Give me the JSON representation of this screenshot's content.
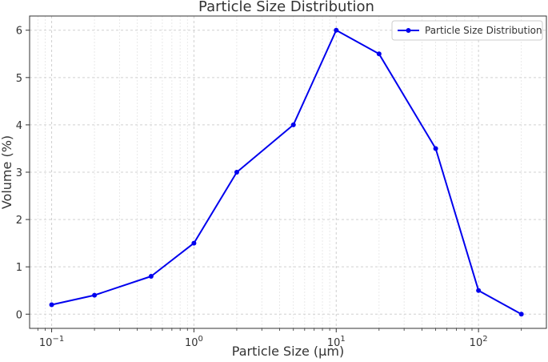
{
  "chart_data": {
    "type": "line",
    "title": "Particle Size Distribution",
    "xlabel": "Particle Size (μm)",
    "ylabel": "Volume (%)",
    "xscale": "log",
    "xlim": [
      0.07,
      300
    ],
    "ylim": [
      -0.3,
      6.3
    ],
    "grid": true,
    "legend_position": "top-right",
    "x_ticks": [
      {
        "value": 0.1,
        "base": "10",
        "exp": "−1"
      },
      {
        "value": 1,
        "base": "10",
        "exp": "0"
      },
      {
        "value": 10,
        "base": "10",
        "exp": "1"
      },
      {
        "value": 100,
        "base": "10",
        "exp": "2"
      }
    ],
    "y_ticks": [
      0,
      1,
      2,
      3,
      4,
      5,
      6
    ],
    "series": [
      {
        "name": "Particle Size Distribution",
        "color": "#0000ee",
        "marker": "circle",
        "x": [
          0.1,
          0.2,
          0.5,
          1,
          2,
          5,
          10,
          20,
          50,
          100,
          200
        ],
        "y": [
          0.2,
          0.4,
          0.8,
          1.5,
          3.0,
          4.0,
          6.0,
          5.5,
          3.5,
          0.5,
          0.0
        ]
      }
    ]
  }
}
